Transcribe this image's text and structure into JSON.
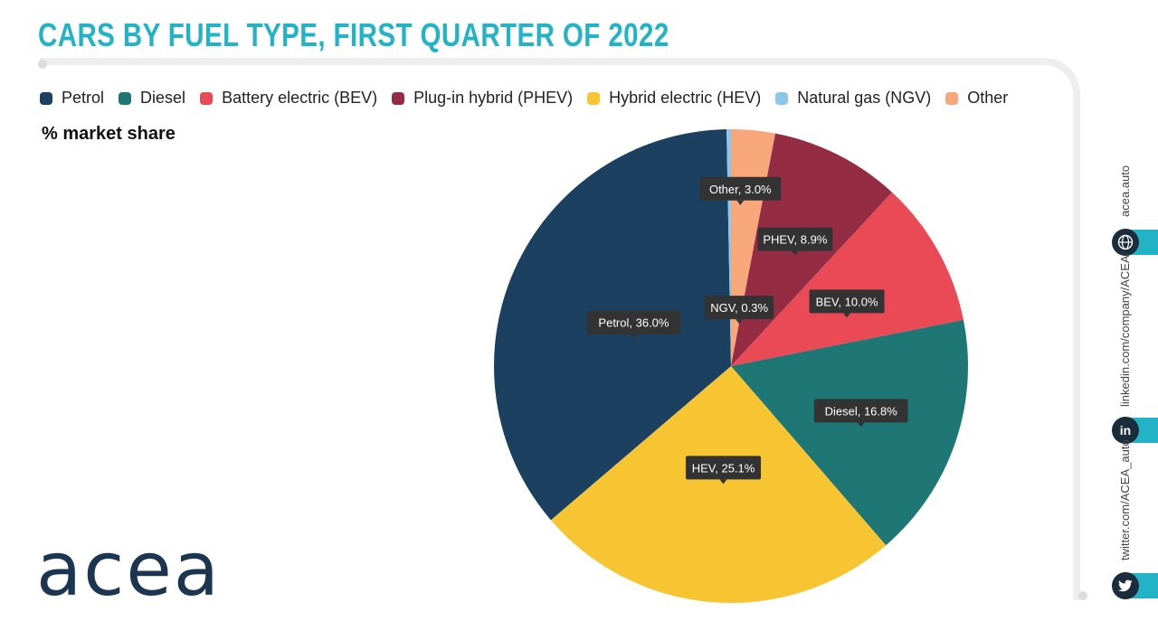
{
  "header": {
    "title": "CARS BY FUEL TYPE, FIRST QUARTER OF 2022"
  },
  "subtitle": "% market share",
  "logo": "acea",
  "side": {
    "website": "acea.auto",
    "linkedin": "linkedin.com/company/ACEA/",
    "twitter": "twitter.com/ACEA_auto",
    "icons": [
      "globe-icon",
      "linkedin-icon",
      "twitter-icon"
    ]
  },
  "colors": {
    "title": "#22b4c6",
    "accent": "#22b4c6",
    "label_bg": "#333333"
  },
  "chart_data": {
    "type": "pie",
    "ylabel": "% market share",
    "legend_position": "top",
    "slices": [
      {
        "legend": "Other",
        "label": "Other",
        "value": 3.0,
        "color": "#f8a77a"
      },
      {
        "legend": "Plug-in hybrid (PHEV)",
        "label": "PHEV",
        "value": 8.9,
        "color": "#942d44"
      },
      {
        "legend": "Battery electric (BEV)",
        "label": "BEV",
        "value": 10.0,
        "color": "#e94a56"
      },
      {
        "legend": "Diesel",
        "label": "Diesel",
        "value": 16.8,
        "color": "#1e7775"
      },
      {
        "legend": "Hybrid electric (HEV)",
        "label": "HEV",
        "value": 25.1,
        "color": "#f6c531"
      },
      {
        "legend": "Petrol",
        "label": "Petrol",
        "value": 36.0,
        "color": "#1c405f"
      },
      {
        "legend": "Natural gas (NGV)",
        "label": "NGV",
        "value": 0.3,
        "color": "#8ec6ea"
      }
    ],
    "legend_order": [
      "Petrol",
      "Diesel",
      "Battery electric (BEV)",
      "Plug-in hybrid (PHEV)",
      "Hybrid electric (HEV)",
      "Natural gas (NGV)",
      "Other"
    ]
  }
}
